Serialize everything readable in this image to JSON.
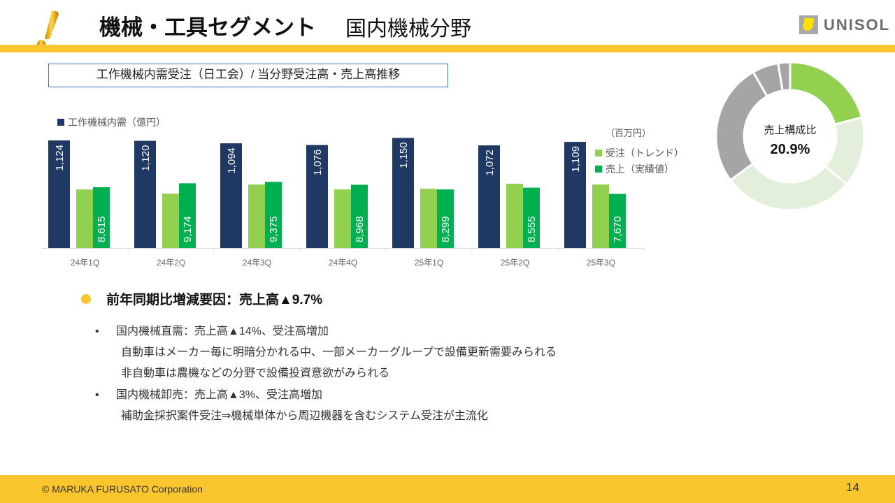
{
  "header": {
    "title": "機械・工具セグメント",
    "subtitle": "国内機械分野",
    "logo": "UNISOL",
    "accent": "#fbc52d"
  },
  "chart_title": "工作機械内需受注（日工会）/ 当分野受注高・売上高推移",
  "chart_data": {
    "type": "bar",
    "categories": [
      "24年1Q",
      "24年2Q",
      "24年3Q",
      "24年4Q",
      "25年1Q",
      "25年2Q",
      "25年3Q"
    ],
    "unit_right": "（百万円）",
    "series": [
      {
        "name": "工作機械内需（億円）",
        "color": "#1f3864",
        "values": [
          1124,
          1120,
          1094,
          1076,
          1150,
          1072,
          1109
        ],
        "labels": [
          "1,124",
          "1,120",
          "1,094",
          "1,076",
          "1,150",
          "1,072",
          "1,109"
        ]
      },
      {
        "name": "受注（トレンド）",
        "color": "#92d050",
        "values": [
          8300,
          7700,
          9000,
          8300,
          8400,
          9100,
          9000
        ]
      },
      {
        "name": "売上（実績値）",
        "color": "#00b050",
        "values": [
          8615,
          9174,
          9375,
          8968,
          8299,
          8555,
          7670
        ],
        "labels": [
          "8,615",
          "9,174",
          "9,375",
          "8,968",
          "8,299",
          "8,555",
          "7,670"
        ]
      }
    ],
    "grid": false
  },
  "donut": {
    "label": "売上構成比",
    "value": "20.9%",
    "slices": [
      {
        "value": 20.9,
        "color": "#92d050"
      },
      {
        "value": 15.3,
        "color": "#e2efda"
      },
      {
        "value": 28.7,
        "color": "#e2efda"
      },
      {
        "value": 26.8,
        "color": "#a5a5a5"
      },
      {
        "value": 5.7,
        "color": "#a5a5a5"
      },
      {
        "value": 2.6,
        "color": "#a5a5a5"
      }
    ]
  },
  "summary": {
    "heading": "前年同期比増減要因：売上高▲9.7%",
    "bullets": [
      {
        "title": "国内機械直需：売上高▲14%、受注高増加",
        "lines": [
          "自動車はメーカー毎に明暗分かれる中、一部メーカーグループで設備更新需要みられる",
          "非自動車は農機などの分野で設備投資意欲がみられる"
        ]
      },
      {
        "title": "国内機械卸売：売上高▲3%、受注高増加",
        "lines": [
          "補助金採択案件受注⇒機械単体から周辺機器を含むシステム受注が主流化"
        ]
      }
    ]
  },
  "footer": {
    "copyright": "© MARUKA FURUSATO Corporation",
    "page": "14"
  }
}
